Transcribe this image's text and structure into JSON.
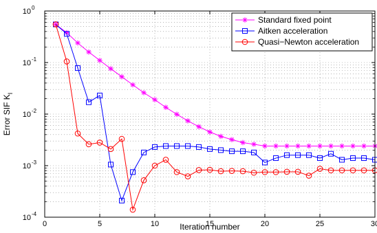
{
  "chart_data": {
    "type": "line",
    "title": "",
    "xlabel": "Iteration number",
    "ylabel_main": "Error SIF K",
    "ylabel_sub": "I",
    "xlim": [
      0,
      30
    ],
    "ylim": [
      0.0001,
      1
    ],
    "yscale": "log",
    "grid": true,
    "legend_position": "top-right",
    "x_ticks": [
      0,
      5,
      10,
      15,
      20,
      25,
      30
    ],
    "y_tick_exponents": [
      -4,
      -3,
      -2,
      -1,
      0
    ],
    "y_tick_base": "10",
    "series": [
      {
        "name": "Standard fixed point",
        "color": "#ff00ff",
        "marker": "asterisk",
        "x": [
          1,
          2,
          3,
          4,
          5,
          6,
          7,
          8,
          9,
          10,
          11,
          12,
          13,
          14,
          15,
          16,
          17,
          18,
          19,
          20,
          21,
          22,
          23,
          24,
          25,
          26,
          27,
          28,
          29,
          30
        ],
        "y": [
          0.55,
          0.38,
          0.24,
          0.16,
          0.11,
          0.076,
          0.053,
          0.037,
          0.026,
          0.019,
          0.0135,
          0.0099,
          0.0074,
          0.0057,
          0.0045,
          0.0037,
          0.0032,
          0.0028,
          0.0026,
          0.0024,
          0.0024,
          0.0024,
          0.0024,
          0.0024,
          0.0024,
          0.0024,
          0.0024,
          0.0024,
          0.0024,
          0.0024
        ]
      },
      {
        "name": "Aitken acceleration",
        "color": "#0000ff",
        "marker": "square",
        "x": [
          1,
          2,
          3,
          4,
          5,
          6,
          7,
          8,
          9,
          10,
          11,
          12,
          13,
          14,
          15,
          16,
          17,
          18,
          19,
          20,
          21,
          22,
          23,
          24,
          25,
          26,
          27,
          28,
          29,
          30
        ],
        "y": [
          0.55,
          0.36,
          0.078,
          0.017,
          0.023,
          0.00105,
          0.00021,
          0.00075,
          0.0018,
          0.0023,
          0.0024,
          0.0024,
          0.0024,
          0.0023,
          0.0021,
          0.002,
          0.0019,
          0.0019,
          0.0018,
          0.00115,
          0.0014,
          0.0016,
          0.0016,
          0.0016,
          0.0014,
          0.0017,
          0.0013,
          0.0014,
          0.0014,
          0.0013
        ]
      },
      {
        "name": "Quasi−Newton acceleration",
        "color": "#ff0000",
        "marker": "circle",
        "x": [
          1,
          2,
          3,
          4,
          5,
          6,
          7,
          8,
          9,
          10,
          11,
          12,
          13,
          14,
          15,
          16,
          17,
          18,
          19,
          20,
          21,
          22,
          23,
          24,
          25,
          26,
          27,
          28,
          29,
          30
        ],
        "y": [
          0.55,
          0.105,
          0.0042,
          0.0026,
          0.0028,
          0.0021,
          0.0033,
          0.00014,
          0.00052,
          0.001,
          0.0013,
          0.00075,
          0.00062,
          0.00082,
          0.00083,
          0.00078,
          0.00079,
          0.00078,
          0.00073,
          0.00075,
          0.00075,
          0.00076,
          0.00076,
          0.00064,
          0.00087,
          0.00081,
          0.00081,
          0.00081,
          0.00081,
          0.00081
        ]
      }
    ]
  }
}
